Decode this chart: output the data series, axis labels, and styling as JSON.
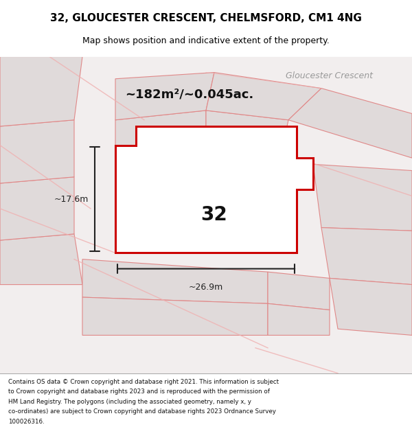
{
  "title": "32, GLOUCESTER CRESCENT, CHELMSFORD, CM1 4NG",
  "subtitle": "Map shows position and indicative extent of the property.",
  "footer_lines": [
    "Contains OS data © Crown copyright and database right 2021. This information is subject",
    "to Crown copyright and database rights 2023 and is reproduced with the permission of",
    "HM Land Registry. The polygons (including the associated geometry, namely x, y",
    "co-ordinates) are subject to Crown copyright and database rights 2023 Ordnance Survey",
    "100026316."
  ],
  "area_text": "~182m²/~0.045ac.",
  "street_label": "Gloucester Crescent",
  "property_number": "32",
  "dim_width": "~26.9m",
  "dim_height": "~17.6m",
  "map_bg": "#f2eeee",
  "property_fill": "#ffffff",
  "property_outline": "#cc0000",
  "neighbor_fill": "#e0dada",
  "neighbor_outline": "#e08888",
  "light_pink": "#f0b0b0",
  "dim_color": "#222222",
  "title_color": "#000000",
  "street_label_color": "#999999",
  "footer_color": "#111111",
  "white": "#ffffff",
  "building_fill": "#d4d0d0"
}
